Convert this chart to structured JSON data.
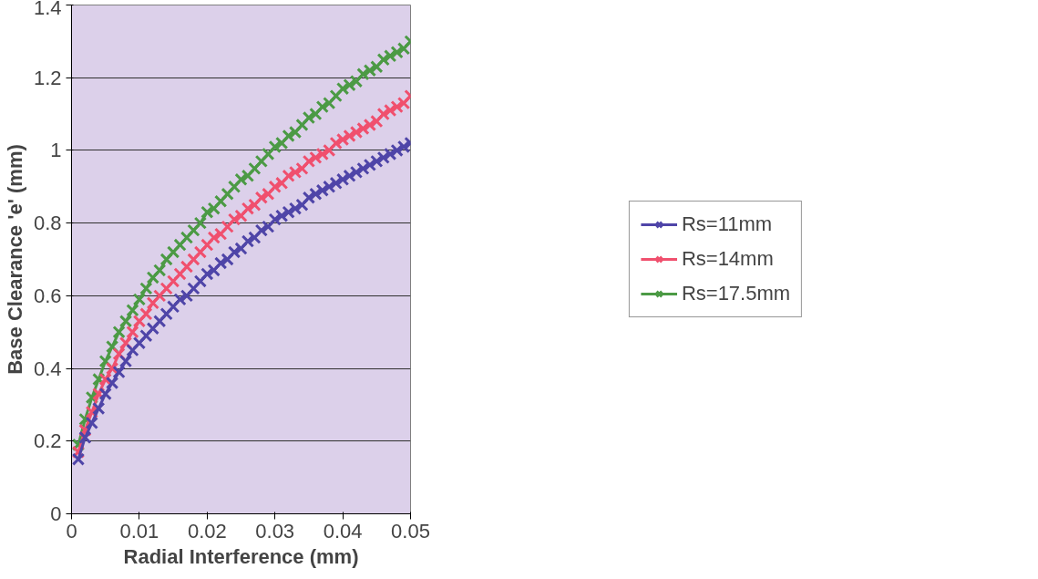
{
  "chart_data": {
    "type": "line",
    "xlabel": "Radial Interference (mm)",
    "ylabel": "Base Clearance 'e' (mm)",
    "x": [
      0.001,
      0.002,
      0.003,
      0.004,
      0.005,
      0.006,
      0.007,
      0.008,
      0.009,
      0.01,
      0.011,
      0.012,
      0.013,
      0.014,
      0.015,
      0.016,
      0.017,
      0.018,
      0.019,
      0.02,
      0.021,
      0.022,
      0.023,
      0.024,
      0.025,
      0.026,
      0.027,
      0.028,
      0.029,
      0.03,
      0.031,
      0.032,
      0.033,
      0.034,
      0.035,
      0.036,
      0.037,
      0.038,
      0.039,
      0.04,
      0.041,
      0.042,
      0.043,
      0.044,
      0.045,
      0.046,
      0.047,
      0.048,
      0.049,
      0.05
    ],
    "series": [
      {
        "name": "Rs=11mm",
        "color": "#4f45a8",
        "values": [
          0.15,
          0.21,
          0.25,
          0.29,
          0.33,
          0.36,
          0.39,
          0.42,
          0.45,
          0.47,
          0.49,
          0.51,
          0.53,
          0.55,
          0.57,
          0.59,
          0.6,
          0.62,
          0.64,
          0.66,
          0.67,
          0.69,
          0.7,
          0.72,
          0.73,
          0.75,
          0.76,
          0.78,
          0.79,
          0.81,
          0.82,
          0.83,
          0.84,
          0.85,
          0.87,
          0.88,
          0.89,
          0.9,
          0.91,
          0.92,
          0.93,
          0.94,
          0.95,
          0.96,
          0.97,
          0.98,
          0.99,
          1.0,
          1.01,
          1.02
        ]
      },
      {
        "name": "Rs=14mm",
        "color": "#f0506e",
        "values": [
          0.17,
          0.23,
          0.28,
          0.33,
          0.37,
          0.4,
          0.44,
          0.47,
          0.5,
          0.53,
          0.55,
          0.58,
          0.6,
          0.62,
          0.64,
          0.66,
          0.68,
          0.7,
          0.72,
          0.74,
          0.76,
          0.77,
          0.79,
          0.81,
          0.82,
          0.84,
          0.85,
          0.87,
          0.88,
          0.9,
          0.91,
          0.93,
          0.94,
          0.95,
          0.97,
          0.98,
          0.99,
          1.0,
          1.02,
          1.03,
          1.04,
          1.05,
          1.06,
          1.07,
          1.08,
          1.1,
          1.11,
          1.12,
          1.13,
          1.15
        ]
      },
      {
        "name": "Rs=17.5mm",
        "color": "#4c9a45",
        "values": [
          0.19,
          0.26,
          0.32,
          0.37,
          0.42,
          0.46,
          0.5,
          0.53,
          0.56,
          0.59,
          0.62,
          0.65,
          0.67,
          0.7,
          0.72,
          0.74,
          0.76,
          0.78,
          0.8,
          0.83,
          0.84,
          0.86,
          0.88,
          0.9,
          0.92,
          0.93,
          0.95,
          0.97,
          0.99,
          1.01,
          1.02,
          1.04,
          1.05,
          1.07,
          1.09,
          1.1,
          1.12,
          1.13,
          1.15,
          1.17,
          1.18,
          1.19,
          1.21,
          1.22,
          1.23,
          1.25,
          1.26,
          1.27,
          1.28,
          1.3
        ]
      }
    ],
    "xlim": [
      0,
      0.05
    ],
    "xticks": [
      0,
      0.01,
      0.02,
      0.03,
      0.04,
      0.05
    ],
    "ylim": [
      0,
      1.4
    ],
    "yticks": [
      0,
      0.2,
      0.4,
      0.6,
      0.8,
      1,
      1.2,
      1.4
    ],
    "grid": "y",
    "legend": "right",
    "marker": "cross",
    "line_style": "solid"
  }
}
